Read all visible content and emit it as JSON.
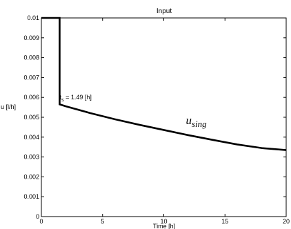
{
  "chart_data": {
    "type": "line",
    "title": "Input",
    "xlabel": "Time [h]",
    "ylabel": "u [l/h]",
    "xlim": [
      0,
      20
    ],
    "ylim": [
      0,
      0.01
    ],
    "grid": false,
    "x_ticks": [
      0,
      5,
      10,
      15,
      20
    ],
    "x_tick_labels": [
      "0",
      "5",
      "10",
      "15",
      "20"
    ],
    "y_ticks": [
      0,
      0.001,
      0.002,
      0.003,
      0.004,
      0.005,
      0.006,
      0.007,
      0.008,
      0.009,
      0.01
    ],
    "y_tick_labels": [
      "0",
      "0.001",
      "0.002",
      "0.003",
      "0.004",
      "0.005",
      "0.006",
      "0.007",
      "0.008",
      "0.009",
      "0.01"
    ],
    "series": [
      {
        "color": "#000000",
        "x": [
          0,
          1.49,
          1.49,
          2,
          4,
          6,
          8,
          10,
          12,
          14,
          16,
          18,
          20
        ],
        "y": [
          0.01,
          0.01,
          0.00565,
          0.00555,
          0.00521,
          0.0049,
          0.00462,
          0.00436,
          0.0041,
          0.00386,
          0.00363,
          0.00345,
          0.00335
        ]
      }
    ],
    "annotations": [
      {
        "id": "ts",
        "text_main": "t",
        "text_sub": "s",
        "text_rest": " = 1.49 [h]",
        "x": 1.5,
        "y": 0.0059
      },
      {
        "id": "using",
        "text_main": "u",
        "text_sub": "sing",
        "x": 11.8,
        "y": 0.00465
      }
    ]
  }
}
